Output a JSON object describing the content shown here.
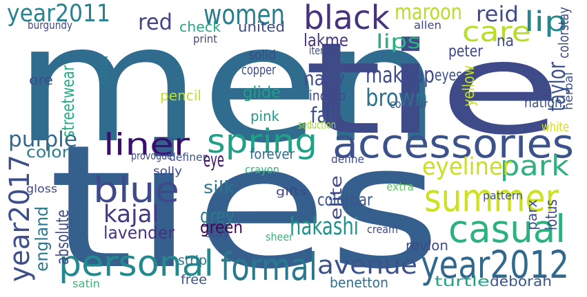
{
  "word_cloud": {
    "background": "#ffffff",
    "words": [
      {
        "text": "men",
        "color": "#2f6c8e"
      },
      {
        "text": "tie",
        "color": "#3f4a89"
      },
      {
        "text": "ties",
        "color": "#355f8d"
      },
      {
        "text": "accessories",
        "color": "#3b528b"
      },
      {
        "text": "black",
        "color": "#46337e"
      },
      {
        "text": "summer",
        "color": "#cde11d"
      },
      {
        "text": "casual",
        "color": "#2db27d"
      },
      {
        "text": "year2012",
        "color": "#31688e"
      },
      {
        "text": "formal",
        "color": "#2a788e"
      },
      {
        "text": "personal",
        "color": "#23898e"
      },
      {
        "text": "blue",
        "color": "#3e4a89"
      },
      {
        "text": "spring",
        "color": "#1fa187"
      },
      {
        "text": "liner",
        "color": "#3b0f70"
      },
      {
        "text": "women",
        "color": "#287d8e"
      },
      {
        "text": "care",
        "color": "#b5de2b"
      },
      {
        "text": "lip",
        "color": "#24878e"
      },
      {
        "text": "year2011",
        "color": "#26828e"
      },
      {
        "text": "year2017",
        "color": "#3c4f8a"
      },
      {
        "text": "avenue",
        "color": "#3b528b"
      },
      {
        "text": "park",
        "color": "#2db27d"
      },
      {
        "text": "eyeliner",
        "color": "#c8e020"
      },
      {
        "text": "kajal",
        "color": "#443983"
      },
      {
        "text": "hakashi",
        "color": "#21918c"
      },
      {
        "text": "makeup",
        "color": "#3e4989"
      },
      {
        "text": "brown",
        "color": "#2c728e"
      },
      {
        "text": "taylor",
        "color": "#3b528b"
      },
      {
        "text": "maroon",
        "color": "#b8de29"
      },
      {
        "text": "reid",
        "color": "#3e4a89"
      },
      {
        "text": "red",
        "color": "#404688"
      },
      {
        "text": "lakme",
        "color": "#453581"
      },
      {
        "text": "lips",
        "color": "#2ab07f"
      },
      {
        "text": "navy",
        "color": "#3e4c8a"
      },
      {
        "text": "fall",
        "color": "#3b528b"
      },
      {
        "text": "purple",
        "color": "#31688e"
      },
      {
        "text": "color",
        "color": "#287d8e"
      },
      {
        "text": "eye",
        "color": "#3b0f70"
      },
      {
        "text": "silk",
        "color": "#2a788e"
      },
      {
        "text": "grey",
        "color": "#2a788e"
      },
      {
        "text": "green",
        "color": "#440154"
      },
      {
        "text": "lavender",
        "color": "#46327e"
      },
      {
        "text": "colorbar",
        "color": "#39568c"
      },
      {
        "text": "parx",
        "color": "#3b528b"
      },
      {
        "text": "lotus",
        "color": "#3e4989"
      },
      {
        "text": "united",
        "color": "#3e4989"
      },
      {
        "text": "check",
        "color": "#22a884"
      },
      {
        "text": "pencil",
        "color": "#bddf26"
      },
      {
        "text": "glide",
        "color": "#1fa187"
      },
      {
        "text": "indigo",
        "color": "#3e4989"
      },
      {
        "text": "pink",
        "color": "#1f9a8a"
      },
      {
        "text": "peter",
        "color": "#404588"
      },
      {
        "text": "eyes",
        "color": "#3b528b"
      },
      {
        "text": "na",
        "color": "#3e4a89"
      },
      {
        "text": "nation",
        "color": "#3b528b"
      },
      {
        "text": "white",
        "color": "#d8e219"
      },
      {
        "text": "forever",
        "color": "#2e6e8e"
      },
      {
        "text": "streetwear",
        "color": "#25ab82"
      },
      {
        "text": "england",
        "color": "#2a788e"
      },
      {
        "text": "absolute",
        "color": "#3e4989"
      },
      {
        "text": "strip",
        "color": "#2c728e"
      },
      {
        "text": "free",
        "color": "#3b528b"
      },
      {
        "text": "deborah",
        "color": "#39568c"
      },
      {
        "text": "turtle",
        "color": "#20a386"
      },
      {
        "text": "benetton",
        "color": "#2c728e"
      },
      {
        "text": "revlon",
        "color": "#3e4989"
      },
      {
        "text": "elite",
        "color": "#3e4989"
      },
      {
        "text": "cream",
        "color": "#3e4989"
      },
      {
        "text": "extra",
        "color": "#5ec962"
      },
      {
        "text": "gifts",
        "color": "#404588"
      },
      {
        "text": "pattern",
        "color": "#3b528b"
      },
      {
        "text": "define",
        "color": "#3e4989"
      },
      {
        "text": "crayon",
        "color": "#35b779"
      },
      {
        "text": "definer",
        "color": "#3b528b"
      },
      {
        "text": "provogue",
        "color": "#3e4989"
      },
      {
        "text": "solly",
        "color": "#3e4989"
      },
      {
        "text": "gloss",
        "color": "#3e4989"
      },
      {
        "text": "stay",
        "color": "#3e4989"
      },
      {
        "text": "satin",
        "color": "#35b779"
      },
      {
        "text": "sheer",
        "color": "#35b779"
      },
      {
        "text": "copper",
        "color": "#3e4989"
      },
      {
        "text": "solid",
        "color": "#3e4989"
      },
      {
        "text": "contour",
        "color": "#3b528b"
      },
      {
        "text": "seduction",
        "color": "#a0da39"
      },
      {
        "text": "yellow",
        "color": "#c2df23"
      },
      {
        "text": "herbal",
        "color": "#3b528b"
      },
      {
        "text": "colorstay",
        "color": "#3e4989"
      },
      {
        "text": "burgundy",
        "color": "#3e4989"
      },
      {
        "text": "allen",
        "color": "#3e4989"
      },
      {
        "text": "items",
        "color": "#3e4989"
      },
      {
        "text": "print",
        "color": "#3e4989"
      },
      {
        "text": "ore",
        "color": "#3e4989"
      },
      {
        "text": "color",
        "color": "#2a788e"
      }
    ]
  }
}
